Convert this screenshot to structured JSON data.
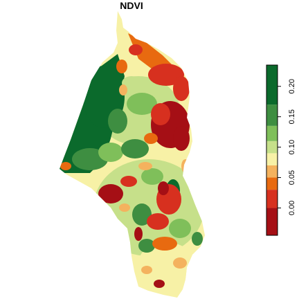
{
  "title": "NDVI",
  "legend": {
    "ticks": [
      {
        "label": "0.00",
        "value": 0.0
      },
      {
        "label": "0.05",
        "value": 0.05
      },
      {
        "label": "0.10",
        "value": 0.1
      },
      {
        "label": "0.15",
        "value": 0.15
      },
      {
        "label": "0.20",
        "value": 0.2
      }
    ],
    "range": [
      -0.045,
      0.235
    ],
    "bins": [
      {
        "from": -0.045,
        "to": 0.0,
        "color": "#a50f15"
      },
      {
        "from": 0.0,
        "to": 0.03,
        "color": "#d7301f"
      },
      {
        "from": 0.03,
        "to": 0.05,
        "color": "#e86a10"
      },
      {
        "from": 0.05,
        "to": 0.07,
        "color": "#f4b25e"
      },
      {
        "from": 0.07,
        "to": 0.09,
        "color": "#f7f1a6"
      },
      {
        "from": 0.09,
        "to": 0.11,
        "color": "#c6e08a"
      },
      {
        "from": 0.11,
        "to": 0.135,
        "color": "#7fbf5a"
      },
      {
        "from": 0.135,
        "to": 0.17,
        "color": "#3e8e41"
      },
      {
        "from": 0.17,
        "to": 0.235,
        "color": "#0b6a2c"
      }
    ]
  }
}
